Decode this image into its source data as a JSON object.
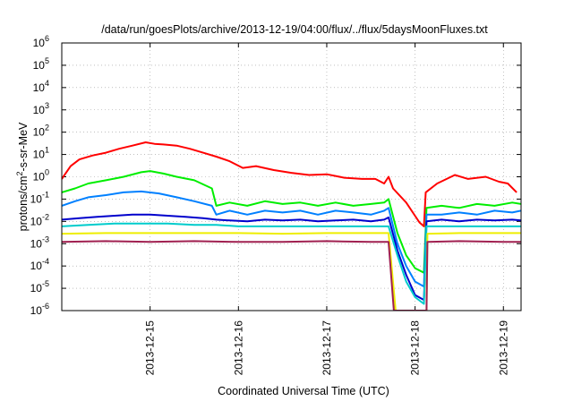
{
  "chart_data": {
    "type": "line",
    "title": "/data/run/goesPlots/archive/2013-12-19/04:00/flux/../flux/5daysMoonFluxes.txt",
    "xlabel": "Coordinated Universal Time (UTC)",
    "ylabel_parts": [
      "protons/cm",
      "2",
      "-s-sr-MeV"
    ],
    "y_scale": "log",
    "ylim_exp": [
      -6,
      6
    ],
    "xlim_days": [
      14.0,
      19.2
    ],
    "x_ticks": [
      {
        "day": 15,
        "label": "2013-12-15"
      },
      {
        "day": 16,
        "label": "2013-12-16"
      },
      {
        "day": 17,
        "label": "2013-12-17"
      },
      {
        "day": 18,
        "label": "2013-12-18"
      },
      {
        "day": 19,
        "label": "2013-12-19"
      }
    ],
    "y_ticks": [
      {
        "exp": 6,
        "base": "10",
        "sup": "6"
      },
      {
        "exp": 5,
        "base": "10",
        "sup": "5"
      },
      {
        "exp": 4,
        "base": "10",
        "sup": "4"
      },
      {
        "exp": 3,
        "base": "10",
        "sup": "3"
      },
      {
        "exp": 2,
        "base": "10",
        "sup": "2"
      },
      {
        "exp": 1,
        "base": "10",
        "sup": "1"
      },
      {
        "exp": 0,
        "base": "10",
        "sup": "0"
      },
      {
        "exp": -1,
        "base": "10",
        "sup": "-1"
      },
      {
        "exp": -2,
        "base": "10",
        "sup": "-2"
      },
      {
        "exp": -3,
        "base": "10",
        "sup": "-3"
      },
      {
        "exp": -4,
        "base": "10",
        "sup": "-4"
      },
      {
        "exp": -5,
        "base": "10",
        "sup": "-5"
      },
      {
        "exp": -6,
        "base": "10",
        "sup": "-6"
      }
    ],
    "grid": true,
    "legend": "none",
    "series": [
      {
        "color": "#ff0000",
        "points": [
          [
            14.0,
            0.8
          ],
          [
            14.1,
            3.0
          ],
          [
            14.2,
            6.0
          ],
          [
            14.35,
            9.0
          ],
          [
            14.5,
            12.0
          ],
          [
            14.65,
            18.0
          ],
          [
            14.8,
            25.0
          ],
          [
            14.95,
            35.0
          ],
          [
            15.05,
            30.0
          ],
          [
            15.15,
            28.0
          ],
          [
            15.3,
            25.0
          ],
          [
            15.45,
            18.0
          ],
          [
            15.6,
            12.0
          ],
          [
            15.75,
            8.0
          ],
          [
            15.9,
            5.0
          ],
          [
            16.05,
            2.5
          ],
          [
            16.2,
            3.0
          ],
          [
            16.4,
            2.0
          ],
          [
            16.6,
            1.5
          ],
          [
            16.8,
            1.2
          ],
          [
            17.0,
            1.3
          ],
          [
            17.2,
            0.9
          ],
          [
            17.4,
            0.8
          ],
          [
            17.55,
            0.8
          ],
          [
            17.65,
            0.5
          ],
          [
            17.7,
            1.0
          ],
          [
            17.75,
            0.3
          ],
          [
            17.9,
            0.07
          ],
          [
            18.05,
            0.009
          ],
          [
            18.1,
            0.006
          ],
          [
            18.12,
            0.2
          ],
          [
            18.25,
            0.5
          ],
          [
            18.45,
            1.2
          ],
          [
            18.6,
            0.8
          ],
          [
            18.8,
            1.0
          ],
          [
            18.95,
            0.6
          ],
          [
            19.05,
            0.5
          ],
          [
            19.15,
            0.2
          ]
        ]
      },
      {
        "color": "#00ee00",
        "points": [
          [
            14.0,
            0.2
          ],
          [
            14.15,
            0.3
          ],
          [
            14.3,
            0.5
          ],
          [
            14.5,
            0.7
          ],
          [
            14.7,
            1.0
          ],
          [
            14.9,
            1.6
          ],
          [
            15.0,
            1.8
          ],
          [
            15.15,
            1.4
          ],
          [
            15.3,
            1.0
          ],
          [
            15.5,
            0.7
          ],
          [
            15.7,
            0.3
          ],
          [
            15.75,
            0.05
          ],
          [
            15.9,
            0.07
          ],
          [
            16.1,
            0.05
          ],
          [
            16.3,
            0.08
          ],
          [
            16.5,
            0.06
          ],
          [
            16.7,
            0.07
          ],
          [
            16.9,
            0.05
          ],
          [
            17.1,
            0.07
          ],
          [
            17.3,
            0.05
          ],
          [
            17.5,
            0.06
          ],
          [
            17.65,
            0.07
          ],
          [
            17.7,
            0.1
          ],
          [
            17.8,
            0.003
          ],
          [
            17.9,
            0.0003
          ],
          [
            18.0,
            8e-05
          ],
          [
            18.1,
            5e-05
          ],
          [
            18.13,
            0.04
          ],
          [
            18.3,
            0.05
          ],
          [
            18.5,
            0.04
          ],
          [
            18.7,
            0.06
          ],
          [
            18.9,
            0.05
          ],
          [
            19.1,
            0.07
          ],
          [
            19.2,
            0.06
          ]
        ]
      },
      {
        "color": "#0080ff",
        "points": [
          [
            14.0,
            0.05
          ],
          [
            14.15,
            0.08
          ],
          [
            14.3,
            0.12
          ],
          [
            14.5,
            0.15
          ],
          [
            14.7,
            0.2
          ],
          [
            14.9,
            0.22
          ],
          [
            15.1,
            0.18
          ],
          [
            15.3,
            0.12
          ],
          [
            15.5,
            0.08
          ],
          [
            15.7,
            0.05
          ],
          [
            15.75,
            0.02
          ],
          [
            15.9,
            0.03
          ],
          [
            16.1,
            0.02
          ],
          [
            16.3,
            0.03
          ],
          [
            16.5,
            0.025
          ],
          [
            16.7,
            0.03
          ],
          [
            16.9,
            0.02
          ],
          [
            17.1,
            0.03
          ],
          [
            17.3,
            0.025
          ],
          [
            17.5,
            0.02
          ],
          [
            17.65,
            0.03
          ],
          [
            17.7,
            0.04
          ],
          [
            17.8,
            0.001
          ],
          [
            17.9,
            0.0001
          ],
          [
            18.0,
            2e-05
          ],
          [
            18.1,
            1.2e-05
          ],
          [
            18.13,
            0.02
          ],
          [
            18.3,
            0.02
          ],
          [
            18.5,
            0.025
          ],
          [
            18.7,
            0.02
          ],
          [
            18.9,
            0.03
          ],
          [
            19.1,
            0.025
          ],
          [
            19.2,
            0.03
          ]
        ]
      },
      {
        "color": "#0000cc",
        "points": [
          [
            14.0,
            0.012
          ],
          [
            14.2,
            0.014
          ],
          [
            14.4,
            0.016
          ],
          [
            14.6,
            0.018
          ],
          [
            14.8,
            0.02
          ],
          [
            15.0,
            0.02
          ],
          [
            15.2,
            0.018
          ],
          [
            15.4,
            0.016
          ],
          [
            15.6,
            0.014
          ],
          [
            15.75,
            0.012
          ],
          [
            15.9,
            0.011
          ],
          [
            16.1,
            0.01
          ],
          [
            16.3,
            0.012
          ],
          [
            16.5,
            0.011
          ],
          [
            16.7,
            0.012
          ],
          [
            16.9,
            0.01
          ],
          [
            17.1,
            0.011
          ],
          [
            17.3,
            0.012
          ],
          [
            17.5,
            0.01
          ],
          [
            17.65,
            0.012
          ],
          [
            17.7,
            0.015
          ],
          [
            17.8,
            0.0005
          ],
          [
            17.9,
            4e-05
          ],
          [
            18.0,
            5e-06
          ],
          [
            18.1,
            3e-06
          ],
          [
            18.13,
            0.01
          ],
          [
            18.3,
            0.012
          ],
          [
            18.5,
            0.01
          ],
          [
            18.7,
            0.012
          ],
          [
            18.9,
            0.011
          ],
          [
            19.1,
            0.012
          ],
          [
            19.2,
            0.011
          ]
        ]
      },
      {
        "color": "#00cccc",
        "points": [
          [
            14.0,
            0.006
          ],
          [
            14.3,
            0.007
          ],
          [
            14.6,
            0.008
          ],
          [
            14.9,
            0.008
          ],
          [
            15.2,
            0.008
          ],
          [
            15.5,
            0.007
          ],
          [
            15.75,
            0.007
          ],
          [
            16.0,
            0.006
          ],
          [
            16.3,
            0.006
          ],
          [
            16.6,
            0.006
          ],
          [
            16.9,
            0.006
          ],
          [
            17.2,
            0.006
          ],
          [
            17.5,
            0.006
          ],
          [
            17.7,
            0.006
          ],
          [
            17.8,
            0.0003
          ],
          [
            17.9,
            2e-05
          ],
          [
            18.0,
            4e-06
          ],
          [
            18.1,
            2e-06
          ],
          [
            18.13,
            0.006
          ],
          [
            18.4,
            0.006
          ],
          [
            18.7,
            0.006
          ],
          [
            19.0,
            0.006
          ],
          [
            19.2,
            0.006
          ]
        ]
      },
      {
        "color": "#eeee00",
        "points": [
          [
            14.0,
            0.0028
          ],
          [
            14.5,
            0.003
          ],
          [
            15.0,
            0.003
          ],
          [
            15.5,
            0.003
          ],
          [
            16.0,
            0.003
          ],
          [
            16.5,
            0.0028
          ],
          [
            17.0,
            0.003
          ],
          [
            17.5,
            0.003
          ],
          [
            17.7,
            0.003
          ],
          [
            17.78,
            1e-06
          ],
          [
            18.13,
            1e-06
          ],
          [
            18.14,
            0.0028
          ],
          [
            18.5,
            0.003
          ],
          [
            19.0,
            0.003
          ],
          [
            19.2,
            0.003
          ]
        ]
      },
      {
        "color": "#a02050",
        "points": [
          [
            14.0,
            0.0012
          ],
          [
            14.5,
            0.0013
          ],
          [
            15.0,
            0.0012
          ],
          [
            15.5,
            0.0013
          ],
          [
            16.0,
            0.0012
          ],
          [
            16.5,
            0.0012
          ],
          [
            17.0,
            0.0013
          ],
          [
            17.5,
            0.0012
          ],
          [
            17.7,
            0.0012
          ],
          [
            17.76,
            1e-06
          ],
          [
            18.13,
            1e-06
          ],
          [
            18.14,
            0.0012
          ],
          [
            18.5,
            0.0013
          ],
          [
            19.0,
            0.0012
          ],
          [
            19.2,
            0.0012
          ]
        ]
      }
    ]
  }
}
